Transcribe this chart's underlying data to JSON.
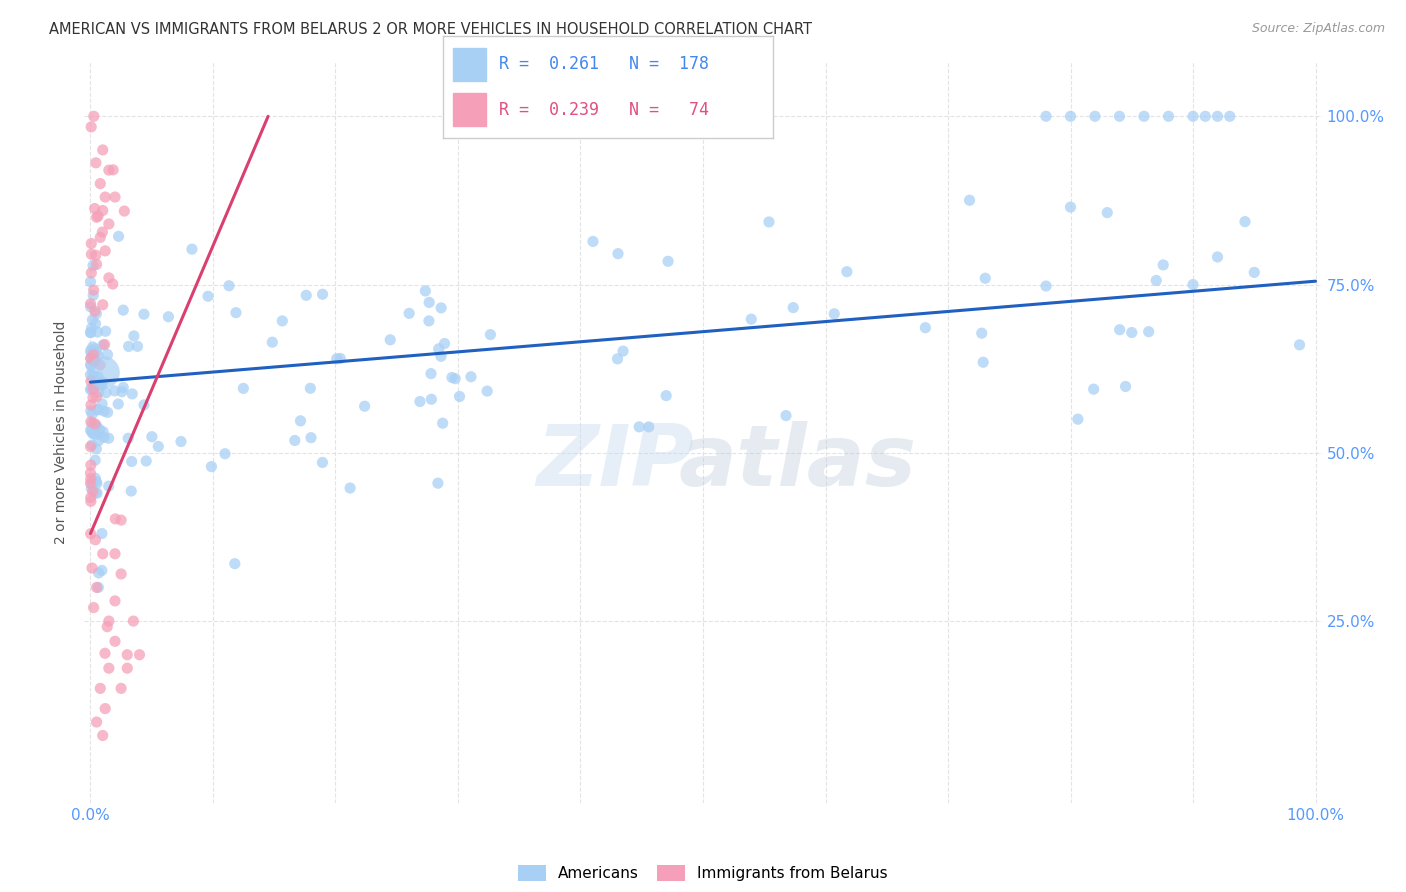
{
  "title": "AMERICAN VS IMMIGRANTS FROM BELARUS 2 OR MORE VEHICLES IN HOUSEHOLD CORRELATION CHART",
  "source": "Source: ZipAtlas.com",
  "ylabel": "2 or more Vehicles in Household",
  "R_american": 0.261,
  "N_american": 178,
  "R_belarus": 0.239,
  "N_belarus": 74,
  "color_american": "#A8D0F5",
  "color_belarus": "#F5A0B8",
  "trendline_american": "#2060C0",
  "trendline_belarus": "#D94070",
  "background_color": "#FFFFFF",
  "watermark_zip": "ZIP",
  "watermark_atlas": "atlas",
  "grid_color": "#DDDDDD",
  "tick_color": "#5599FF",
  "label_color": "#555555",
  "title_color": "#333333",
  "source_color": "#999999"
}
